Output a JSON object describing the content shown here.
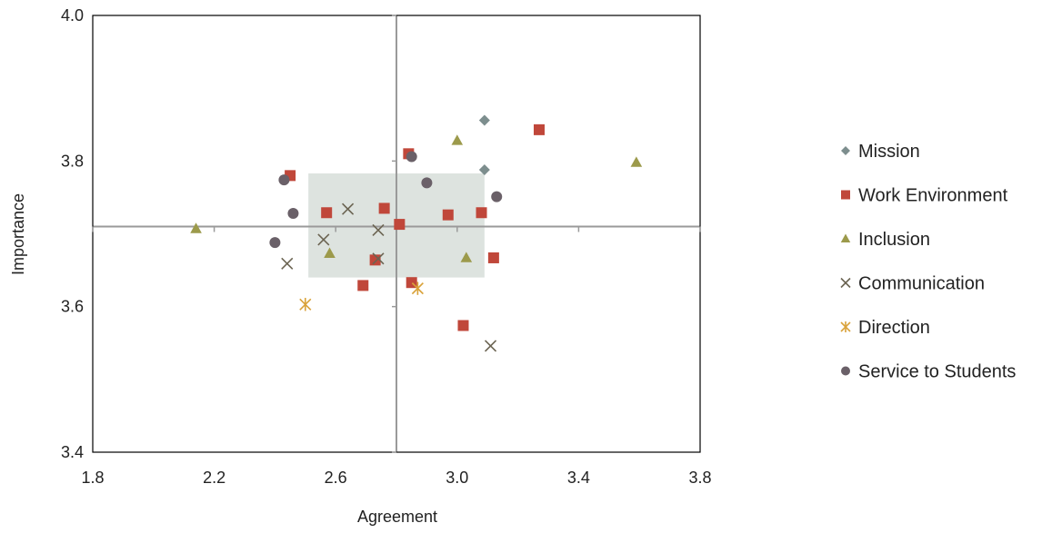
{
  "chart_data": {
    "type": "scatter",
    "xlabel": "Agreement",
    "ylabel": "Importance",
    "xlim": [
      1.8,
      3.8
    ],
    "ylim": [
      3.4,
      4.0
    ],
    "xticks": [
      1.8,
      2.2,
      2.6,
      3.0,
      3.4,
      3.8
    ],
    "yticks": [
      3.4,
      3.6,
      3.8,
      4.0
    ],
    "xtick_labels": [
      "1.8",
      "2.2",
      "2.6",
      "3.0",
      "3.4",
      "3.8"
    ],
    "ytick_labels": [
      "3.4",
      "3.6",
      "3.8",
      "4.0"
    ],
    "reference_lines": {
      "x": 2.8,
      "y": 3.71
    },
    "highlight_box": {
      "x": [
        2.51,
        3.09
      ],
      "y": [
        3.64,
        3.783
      ],
      "color": "#dde3df"
    },
    "grid": false,
    "legend_position": "right",
    "series": [
      {
        "name": "Mission",
        "marker": "diamond",
        "color": "#7d8e8e",
        "points": [
          [
            3.09,
            3.856
          ],
          [
            3.09,
            3.788
          ]
        ]
      },
      {
        "name": "Work Environment",
        "marker": "square",
        "color": "#c0473a",
        "points": [
          [
            2.45,
            3.78
          ],
          [
            2.84,
            3.81
          ],
          [
            3.27,
            3.843
          ],
          [
            2.57,
            3.729
          ],
          [
            2.76,
            3.735
          ],
          [
            2.81,
            3.713
          ],
          [
            2.97,
            3.726
          ],
          [
            3.08,
            3.729
          ],
          [
            2.73,
            3.664
          ],
          [
            2.69,
            3.629
          ],
          [
            2.85,
            3.633
          ],
          [
            3.12,
            3.667
          ],
          [
            3.02,
            3.574
          ]
        ]
      },
      {
        "name": "Inclusion",
        "marker": "triangle",
        "color": "#9c9a4b",
        "points": [
          [
            2.14,
            3.707
          ],
          [
            2.58,
            3.673
          ],
          [
            3.0,
            3.828
          ],
          [
            3.59,
            3.798
          ],
          [
            3.03,
            3.667
          ]
        ]
      },
      {
        "name": "Communication",
        "marker": "x",
        "color": "#6b6452",
        "points": [
          [
            2.44,
            3.659
          ],
          [
            2.56,
            3.692
          ],
          [
            2.64,
            3.734
          ],
          [
            2.74,
            3.705
          ],
          [
            2.74,
            3.666
          ],
          [
            3.11,
            3.546
          ]
        ]
      },
      {
        "name": "Direction",
        "marker": "star",
        "color": "#d9a23a",
        "points": [
          [
            2.5,
            3.603
          ],
          [
            2.87,
            3.625
          ]
        ]
      },
      {
        "name": "Service to Students",
        "marker": "circle",
        "color": "#6a6068",
        "points": [
          [
            2.43,
            3.774
          ],
          [
            2.46,
            3.728
          ],
          [
            2.4,
            3.688
          ],
          [
            2.85,
            3.806
          ],
          [
            2.9,
            3.77
          ],
          [
            3.13,
            3.751
          ]
        ]
      }
    ]
  }
}
